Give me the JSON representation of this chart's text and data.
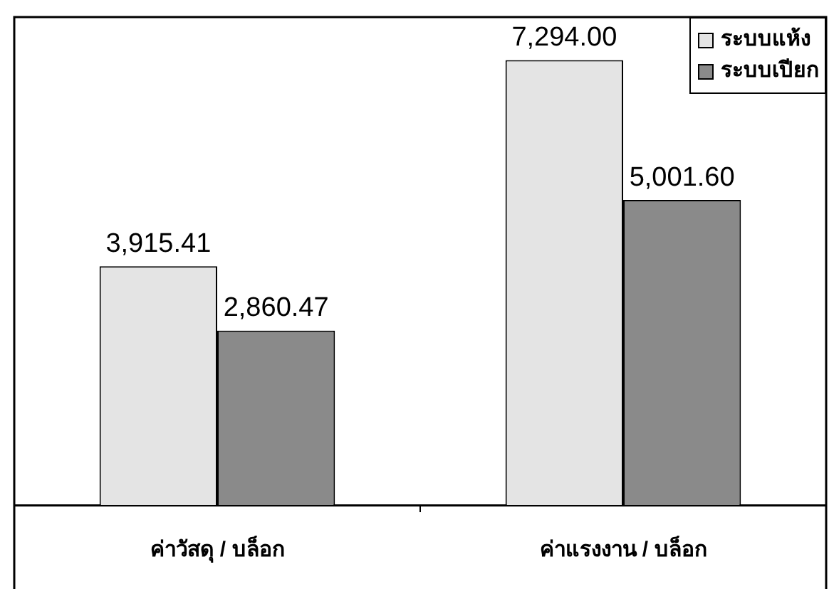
{
  "chart_data": {
    "type": "bar",
    "categories": [
      "ค่าวัสดุ / บล็อก",
      "ค่าแรงงาน / บล็อก"
    ],
    "series": [
      {
        "name": "ระบบแห้ง",
        "color": "#e4e4e4",
        "values": [
          3915.41,
          7294.0
        ],
        "value_labels": [
          "3,915.41",
          "7,294.00"
        ]
      },
      {
        "name": "ระบบเปียก",
        "color": "#8a8a8a",
        "values": [
          2860.47,
          5001.6
        ],
        "value_labels": [
          "2,860.47",
          "5,001.60"
        ]
      }
    ],
    "legend": "top right",
    "tick_labels": "x"
  }
}
